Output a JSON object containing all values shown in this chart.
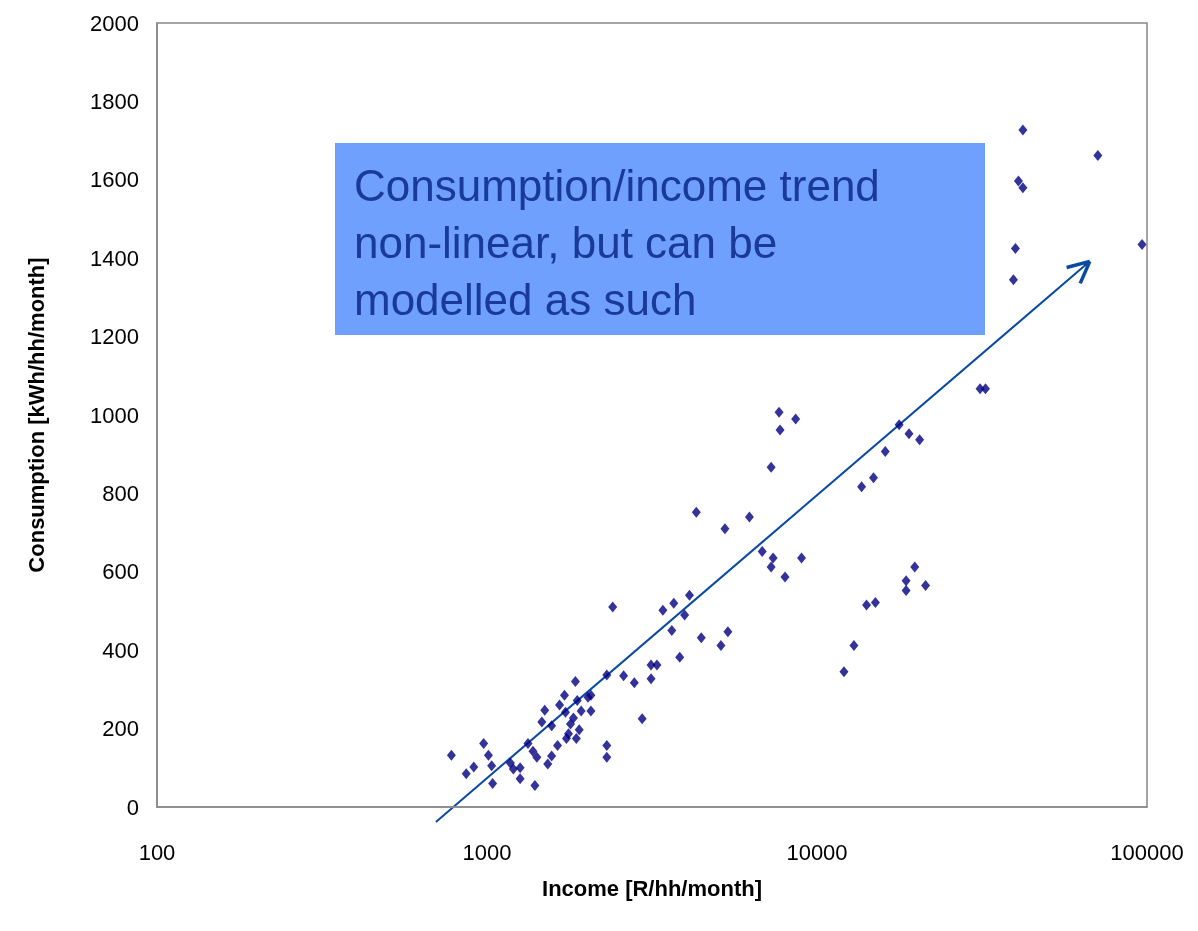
{
  "chart_data": {
    "type": "scatter",
    "xlabel": "Income [R/hh/month]",
    "ylabel": "Consumption [kWh/hh/month]",
    "annotations": [
      "Consumption/income trend non-linear, but can be modelled as such"
    ],
    "log": "x",
    "xlim": [
      100,
      100000
    ],
    "xticks": [
      100,
      1000,
      10000,
      100000
    ],
    "ylim": [
      0,
      2000
    ],
    "yticks": [
      0,
      200,
      400,
      600,
      800,
      1000,
      1200,
      1400,
      1600,
      1800,
      2000
    ],
    "grid": false,
    "marker": "diamond",
    "series": [
      {
        "color": "#000080",
        "x": [
          780,
          865,
          912,
          977,
          1010,
          1033,
          1040,
          1177,
          1202,
          1260,
          1260,
          1331,
          1378,
          1416,
          1397,
          1466,
          1496,
          1528,
          1570,
          1570,
          1636,
          1659,
          1729,
          1717,
          1741,
          1766,
          1791,
          1828,
          1853,
          1877,
          1865,
          1903,
          1929,
          2023,
          2065,
          2065,
          2307,
          2307,
          2307,
          2404,
          2594,
          2795,
          2953,
          3141,
          3141,
          3273,
          3412,
          3631,
          3681,
          3837,
          3971,
          4107,
          4308,
          4460,
          5116,
          5260,
          5370,
          6240,
          6823,
          7261,
          7362,
          7261,
          7674,
          7727,
          8000,
          8616,
          8977,
          12070,
          12940,
          13650,
          14130,
          14830,
          15030,
          16100,
          17740,
          18620,
          18620,
          19000,
          19780,
          20460,
          21330,
          31200,
          32400,
          39380,
          39930,
          40780,
          42070,
          42070,
          70970,
          96600
        ],
        "values": [
          132,
          85,
          102,
          162,
          132,
          105,
          60,
          112,
          97,
          100,
          72,
          162,
          142,
          127,
          55,
          217,
          247,
          110,
          207,
          130,
          157,
          260,
          242,
          285,
          175,
          187,
          212,
          227,
          320,
          272,
          175,
          197,
          245,
          280,
          285,
          245,
          337,
          157,
          127,
          510,
          335,
          317,
          225,
          362,
          327,
          362,
          502,
          450,
          520,
          382,
          490,
          540,
          752,
          432,
          412,
          710,
          447,
          740,
          652,
          867,
          635,
          612,
          1007,
          962,
          587,
          990,
          635,
          345,
          412,
          817,
          515,
          840,
          522,
          907,
          975,
          577,
          552,
          952,
          612,
          937,
          565,
          1067,
          1067,
          1345,
          1425,
          1597,
          1580,
          1727,
          1662,
          1435
        ]
      }
    ]
  }
}
